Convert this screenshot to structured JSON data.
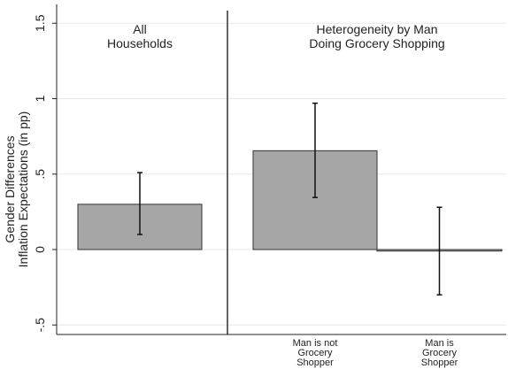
{
  "chart_data": {
    "type": "bar",
    "ylabel": [
      "Gender Differences",
      "Inflation Expectations (in pp)"
    ],
    "ylim": [
      -0.55,
      1.55
    ],
    "yticks": [
      {
        "value": -0.5,
        "label": "-.5"
      },
      {
        "value": 0,
        "label": "0"
      },
      {
        "value": 0.5,
        "label": ".5"
      },
      {
        "value": 1,
        "label": "1"
      },
      {
        "value": 1.5,
        "label": "1.5"
      }
    ],
    "grid": true,
    "bar_color": "#a6a6a6",
    "panels": [
      {
        "title": [
          "All",
          "Households"
        ],
        "bars": [
          {
            "category": [],
            "value": 0.3,
            "ci_low": 0.1,
            "ci_high": 0.51
          }
        ]
      },
      {
        "title": [
          "Heterogeneity by Man",
          "Doing Grocery Shopping"
        ],
        "bars": [
          {
            "category": [
              "Man is not",
              "Grocery",
              "Shopper"
            ],
            "value": 0.655,
            "ci_low": 0.345,
            "ci_high": 0.97
          },
          {
            "category": [
              "Man is",
              "Grocery",
              "Shopper"
            ],
            "value": -0.01,
            "ci_low": -0.3,
            "ci_high": 0.28
          }
        ]
      }
    ]
  }
}
